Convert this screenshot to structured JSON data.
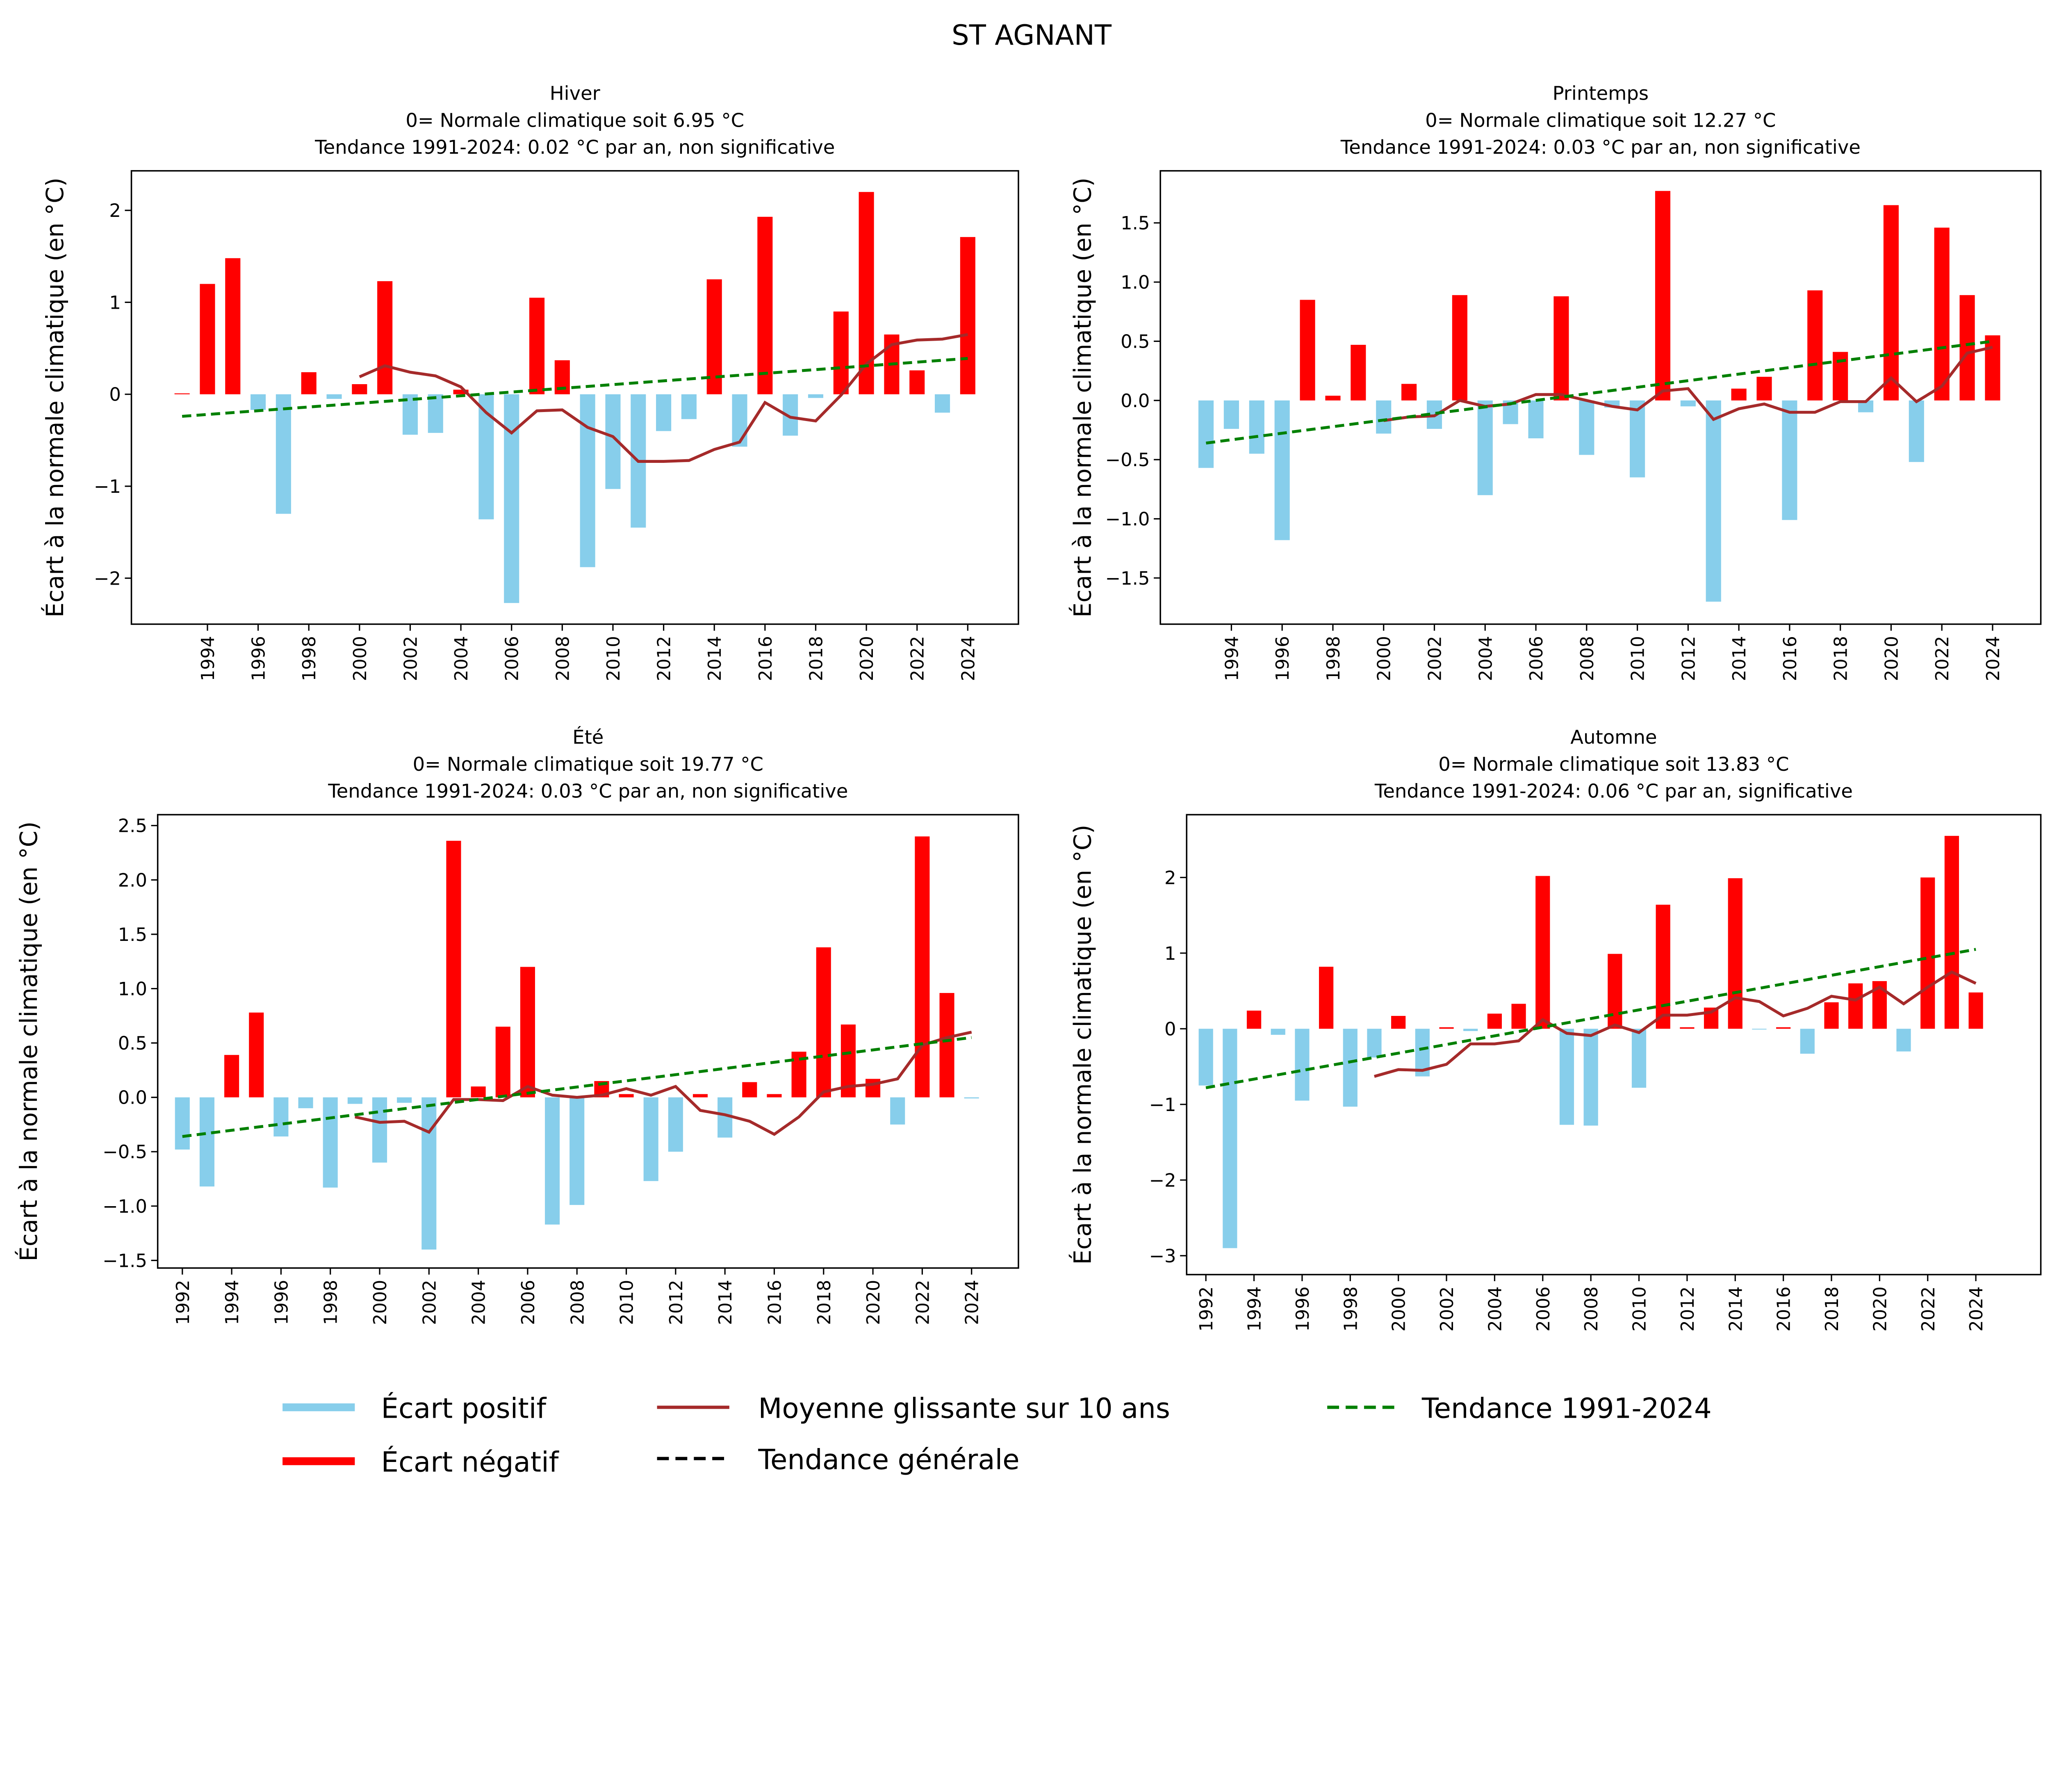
{
  "title": "ST AGNANT",
  "legend": {
    "placement": "bottom",
    "items": [
      {
        "label": "Écart positif",
        "color": "#87ceeb",
        "style": "solid"
      },
      {
        "label": "Écart négatif",
        "color": "#ff0000",
        "style": "solid"
      },
      {
        "label": "Moyenne glissante sur 10 ans",
        "color": "#a52a2a",
        "style": "solid"
      },
      {
        "label": "Tendance générale",
        "color": "#000000",
        "style": "dashed"
      },
      {
        "label": "Tendance 1991-2024",
        "color": "#008000",
        "style": "dashed"
      }
    ]
  },
  "chart_data": [
    {
      "type": "bar",
      "title": [
        "Hiver",
        "0= Normale climatique soit 6.95 °C",
        "Tendance 1991-2024: 0.02 °C par an, non significative"
      ],
      "ylabel": "Écart à la normale climatique (en °C)",
      "xlim": [
        1991.0,
        2026.0
      ],
      "ylim": [
        -2.5,
        2.43
      ],
      "yticks": [
        -2,
        -1,
        0,
        1,
        2
      ],
      "yticklabels": [
        "−2",
        "−1",
        "0",
        "1",
        "2"
      ],
      "xticks": [
        1994,
        1996,
        1998,
        2000,
        2002,
        2004,
        2006,
        2008,
        2010,
        2012,
        2014,
        2016,
        2018,
        2020,
        2022,
        2024
      ],
      "x": [
        1993,
        1994,
        1995,
        1996,
        1997,
        1998,
        1999,
        2000,
        2001,
        2002,
        2003,
        2004,
        2005,
        2006,
        2007,
        2008,
        2009,
        2010,
        2011,
        2012,
        2013,
        2014,
        2015,
        2016,
        2017,
        2018,
        2019,
        2020,
        2021,
        2022,
        2023,
        2024
      ],
      "values": [
        0.01,
        1.2,
        1.48,
        -0.17,
        -1.3,
        0.24,
        -0.05,
        0.11,
        1.23,
        -0.44,
        -0.42,
        0.05,
        -1.36,
        -2.27,
        1.05,
        0.37,
        -1.88,
        -1.03,
        -1.45,
        -0.4,
        -0.27,
        1.25,
        -0.57,
        1.93,
        -0.45,
        -0.04,
        0.9,
        2.2,
        0.65,
        0.26,
        -0.2,
        1.71
      ],
      "rolling_x_start": 2000,
      "rolling": [
        0.19,
        0.31,
        0.24,
        0.2,
        0.08,
        -0.2,
        -0.42,
        -0.18,
        -0.17,
        -0.36,
        -0.46,
        -0.73,
        -0.73,
        -0.72,
        -0.6,
        -0.52,
        -0.09,
        -0.25,
        -0.29,
        -0.01,
        0.33,
        0.54,
        0.59,
        0.6,
        0.65
      ],
      "trend": {
        "x": [
          1993,
          2024
        ],
        "y": [
          -0.24,
          0.39
        ]
      }
    },
    {
      "type": "bar",
      "title": [
        "Printemps",
        "0= Normale climatique soit 12.27 °C",
        "Tendance 1991-2024: 0.03 °C par an, non significative"
      ],
      "ylabel": "Écart à la normale climatique (en °C)",
      "xlim": [
        1991.2,
        2025.9
      ],
      "ylim": [
        -1.89,
        1.94
      ],
      "yticks": [
        -1.5,
        -1,
        -0.5,
        0,
        0.5,
        1,
        1.5
      ],
      "yticklabels": [
        "−1.5",
        "−1.0",
        "−0.5",
        "0.0",
        "0.5",
        "1.0",
        "1.5"
      ],
      "xticks": [
        1994,
        1996,
        1998,
        2000,
        2002,
        2004,
        2006,
        2008,
        2010,
        2012,
        2014,
        2016,
        2018,
        2020,
        2022,
        2024
      ],
      "x": [
        1993,
        1994,
        1995,
        1996,
        1997,
        1998,
        1999,
        2000,
        2001,
        2002,
        2003,
        2004,
        2005,
        2006,
        2007,
        2008,
        2009,
        2010,
        2011,
        2012,
        2013,
        2014,
        2015,
        2016,
        2017,
        2018,
        2019,
        2020,
        2021,
        2022,
        2023,
        2024
      ],
      "values": [
        -0.57,
        -0.24,
        -0.45,
        -1.18,
        0.85,
        0.04,
        0.47,
        -0.28,
        0.14,
        -0.24,
        0.89,
        -0.8,
        -0.2,
        -0.32,
        0.88,
        -0.46,
        -0.06,
        -0.65,
        1.77,
        -0.05,
        -1.7,
        0.1,
        0.2,
        -1.01,
        0.93,
        0.41,
        -0.1,
        1.65,
        -0.52,
        1.46,
        0.89,
        0.55
      ],
      "rolling_x_start": 2000,
      "rolling": [
        -0.17,
        -0.14,
        -0.13,
        0.0,
        -0.05,
        -0.03,
        0.05,
        0.05,
        0.0,
        -0.05,
        -0.08,
        0.08,
        0.1,
        -0.16,
        -0.07,
        -0.03,
        -0.1,
        -0.1,
        -0.01,
        -0.01,
        0.19,
        -0.01,
        0.12,
        0.4,
        0.45
      ],
      "trend": {
        "x": [
          1993,
          2024
        ],
        "y": [
          -0.36,
          0.5
        ]
      }
    },
    {
      "type": "bar",
      "title": [
        "Été",
        "0= Normale climatique soit 19.77 °C",
        "Tendance 1991-2024: 0.03 °C par an, non significative"
      ],
      "ylabel": "Écart à la normale climatique (en °C)",
      "xlim": [
        1991.0,
        2025.9
      ],
      "ylim": [
        -1.57,
        2.6
      ],
      "yticks": [
        -1.5,
        -1,
        -0.5,
        0,
        0.5,
        1,
        1.5,
        2,
        2.5
      ],
      "yticklabels": [
        "−1.5",
        "−1.0",
        "−0.5",
        "0.0",
        "0.5",
        "1.0",
        "1.5",
        "2.0",
        "2.5"
      ],
      "xticks": [
        1992,
        1994,
        1996,
        1998,
        2000,
        2002,
        2004,
        2006,
        2008,
        2010,
        2012,
        2014,
        2016,
        2018,
        2020,
        2022,
        2024
      ],
      "x": [
        1992,
        1993,
        1994,
        1995,
        1996,
        1997,
        1998,
        1999,
        2000,
        2001,
        2002,
        2003,
        2004,
        2005,
        2006,
        2007,
        2008,
        2009,
        2010,
        2011,
        2012,
        2013,
        2014,
        2015,
        2016,
        2017,
        2018,
        2019,
        2020,
        2021,
        2022,
        2023,
        2024
      ],
      "values": [
        -0.48,
        -0.82,
        0.39,
        0.78,
        -0.36,
        -0.1,
        -0.83,
        -0.06,
        -0.6,
        -0.05,
        -1.4,
        2.36,
        0.1,
        0.65,
        1.2,
        -1.17,
        -0.99,
        0.15,
        0.03,
        -0.77,
        -0.5,
        0.03,
        -0.37,
        0.14,
        0.03,
        0.42,
        1.38,
        0.67,
        0.17,
        -0.25,
        2.4,
        0.96,
        -0.01
      ],
      "rolling_x_start": 1999,
      "rolling": [
        -0.18,
        -0.23,
        -0.22,
        -0.32,
        -0.02,
        -0.02,
        -0.03,
        0.1,
        0.02,
        0.0,
        0.02,
        0.08,
        0.02,
        0.1,
        -0.12,
        -0.16,
        -0.22,
        -0.34,
        -0.18,
        0.05,
        0.1,
        0.12,
        0.17,
        0.48,
        0.55,
        0.6
      ],
      "trend": {
        "x": [
          1992,
          2024
        ],
        "y": [
          -0.36,
          0.55
        ]
      }
    },
    {
      "type": "bar",
      "title": [
        "Automne",
        "0= Normale climatique soit 13.83 °C",
        "Tendance 1991-2024: 0.06 °C par an, significative"
      ],
      "ylabel": "Écart à la normale climatique (en °C)",
      "xlim": [
        1991.2,
        2026.7
      ],
      "ylim": [
        -3.25,
        2.83
      ],
      "yticks": [
        -3,
        -2,
        -1,
        0,
        1,
        2
      ],
      "yticklabels": [
        "−3",
        "−2",
        "−1",
        "0",
        "1",
        "2"
      ],
      "xticks": [
        1992,
        1994,
        1996,
        1998,
        2000,
        2002,
        2004,
        2006,
        2008,
        2010,
        2012,
        2014,
        2016,
        2018,
        2020,
        2022,
        2024
      ],
      "x": [
        1992,
        1993,
        1994,
        1995,
        1996,
        1997,
        1998,
        1999,
        2000,
        2001,
        2002,
        2003,
        2004,
        2005,
        2006,
        2007,
        2008,
        2009,
        2010,
        2011,
        2012,
        2013,
        2014,
        2015,
        2016,
        2017,
        2018,
        2019,
        2020,
        2021,
        2022,
        2023,
        2024
      ],
      "values": [
        -0.75,
        -2.9,
        0.24,
        -0.08,
        -0.95,
        0.82,
        -1.03,
        -0.38,
        0.17,
        -0.63,
        0.02,
        -0.03,
        0.2,
        0.33,
        2.02,
        -1.27,
        -1.28,
        0.99,
        -0.78,
        1.64,
        0.02,
        0.28,
        1.99,
        -0.01,
        0.02,
        -0.33,
        0.35,
        0.6,
        0.63,
        -0.3,
        2.0,
        2.55,
        0.48
      ],
      "rolling_x_start": 1999,
      "rolling": [
        -0.63,
        -0.54,
        -0.55,
        -0.47,
        -0.2,
        -0.2,
        -0.16,
        0.12,
        -0.06,
        -0.09,
        0.05,
        -0.05,
        0.18,
        0.18,
        0.22,
        0.41,
        0.36,
        0.17,
        0.27,
        0.43,
        0.38,
        0.55,
        0.33,
        0.55,
        0.75,
        0.6
      ],
      "trend": {
        "x": [
          1992,
          2024
        ],
        "y": [
          -0.78,
          1.05
        ]
      }
    }
  ]
}
